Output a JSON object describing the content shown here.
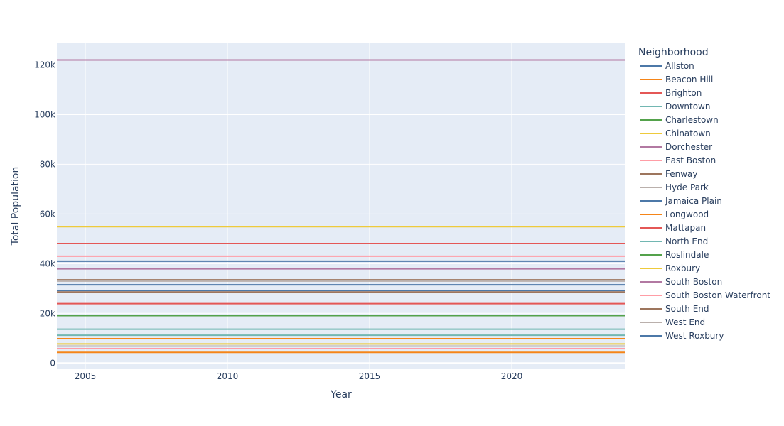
{
  "chart_data": {
    "type": "line",
    "xlabel": "Year",
    "ylabel": "Total Population",
    "xlim": [
      2004,
      2024
    ],
    "ylim": [
      -2500,
      129000
    ],
    "x_ticks": [
      2005,
      2010,
      2015,
      2020
    ],
    "y_ticks": [
      0,
      20000,
      40000,
      60000,
      80000,
      100000,
      120000
    ],
    "y_tick_labels": [
      "0",
      "20k",
      "40k",
      "60k",
      "80k",
      "100k",
      "120k"
    ],
    "grid": true,
    "legend": {
      "title": "Neighborhood",
      "placement": "right"
    },
    "series": [
      {
        "name": "Allston",
        "color": "#4c78a8",
        "y": 29200
      },
      {
        "name": "Beacon Hill",
        "color": "#f58518",
        "y": 9800
      },
      {
        "name": "Brighton",
        "color": "#e45756",
        "y": 48100
      },
      {
        "name": "Downtown",
        "color": "#72b7b2",
        "y": 11200
      },
      {
        "name": "Charlestown",
        "color": "#54a24b",
        "y": 19100
      },
      {
        "name": "Chinatown",
        "color": "#eeca3b",
        "y": 7700
      },
      {
        "name": "Dorchester",
        "color": "#b279a2",
        "y": 122000
      },
      {
        "name": "East Boston",
        "color": "#ff9da6",
        "y": 43000
      },
      {
        "name": "Fenway",
        "color": "#9d755d",
        "y": 33500
      },
      {
        "name": "Hyde Park",
        "color": "#bab0ac",
        "y": 33000
      },
      {
        "name": "Jamaica Plain",
        "color": "#4c78a8",
        "y": 41000
      },
      {
        "name": "Longwood",
        "color": "#f58518",
        "y": 4300
      },
      {
        "name": "Mattapan",
        "color": "#e45756",
        "y": 23900
      },
      {
        "name": "North End",
        "color": "#72b7b2",
        "y": 13600
      },
      {
        "name": "Roslindale",
        "color": "#54a24b",
        "y": 19200
      },
      {
        "name": "Roxbury",
        "color": "#eeca3b",
        "y": 54900
      },
      {
        "name": "South Boston",
        "color": "#b279a2",
        "y": 37900
      },
      {
        "name": "South Boston Waterfront",
        "color": "#ff9da6",
        "y": 5800
      },
      {
        "name": "South End",
        "color": "#9d755d",
        "y": 28600
      },
      {
        "name": "West End",
        "color": "#bab0ac",
        "y": 6800
      },
      {
        "name": "West Roxbury",
        "color": "#4c78a8",
        "y": 31500
      }
    ]
  }
}
